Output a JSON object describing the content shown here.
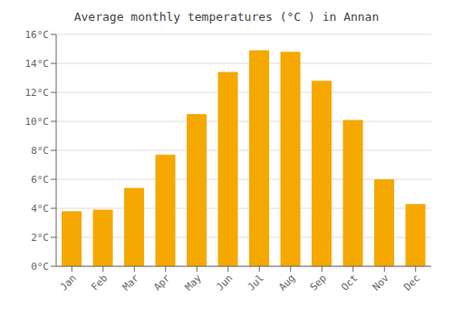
{
  "chart_data": {
    "type": "bar",
    "title": "Average monthly temperatures (°C ) in Annan",
    "categories": [
      "Jan",
      "Feb",
      "Mar",
      "Apr",
      "May",
      "Jun",
      "Jul",
      "Aug",
      "Sep",
      "Oct",
      "Nov",
      "Dec"
    ],
    "values": [
      3.8,
      3.9,
      5.4,
      7.7,
      10.5,
      13.4,
      14.9,
      14.8,
      12.8,
      10.1,
      6.0,
      4.3
    ],
    "color": "#F5A800",
    "ylim": [
      0,
      16
    ],
    "yticks": [
      {
        "value": 0,
        "label": "0°C"
      },
      {
        "value": 2,
        "label": "2°C"
      },
      {
        "value": 4,
        "label": "4°C"
      },
      {
        "value": 6,
        "label": "6°C"
      },
      {
        "value": 8,
        "label": "8°C"
      },
      {
        "value": 10,
        "label": "10°C"
      },
      {
        "value": 12,
        "label": "12°C"
      },
      {
        "value": 14,
        "label": "14°C"
      },
      {
        "value": 16,
        "label": "16°C"
      }
    ],
    "grid": true
  }
}
